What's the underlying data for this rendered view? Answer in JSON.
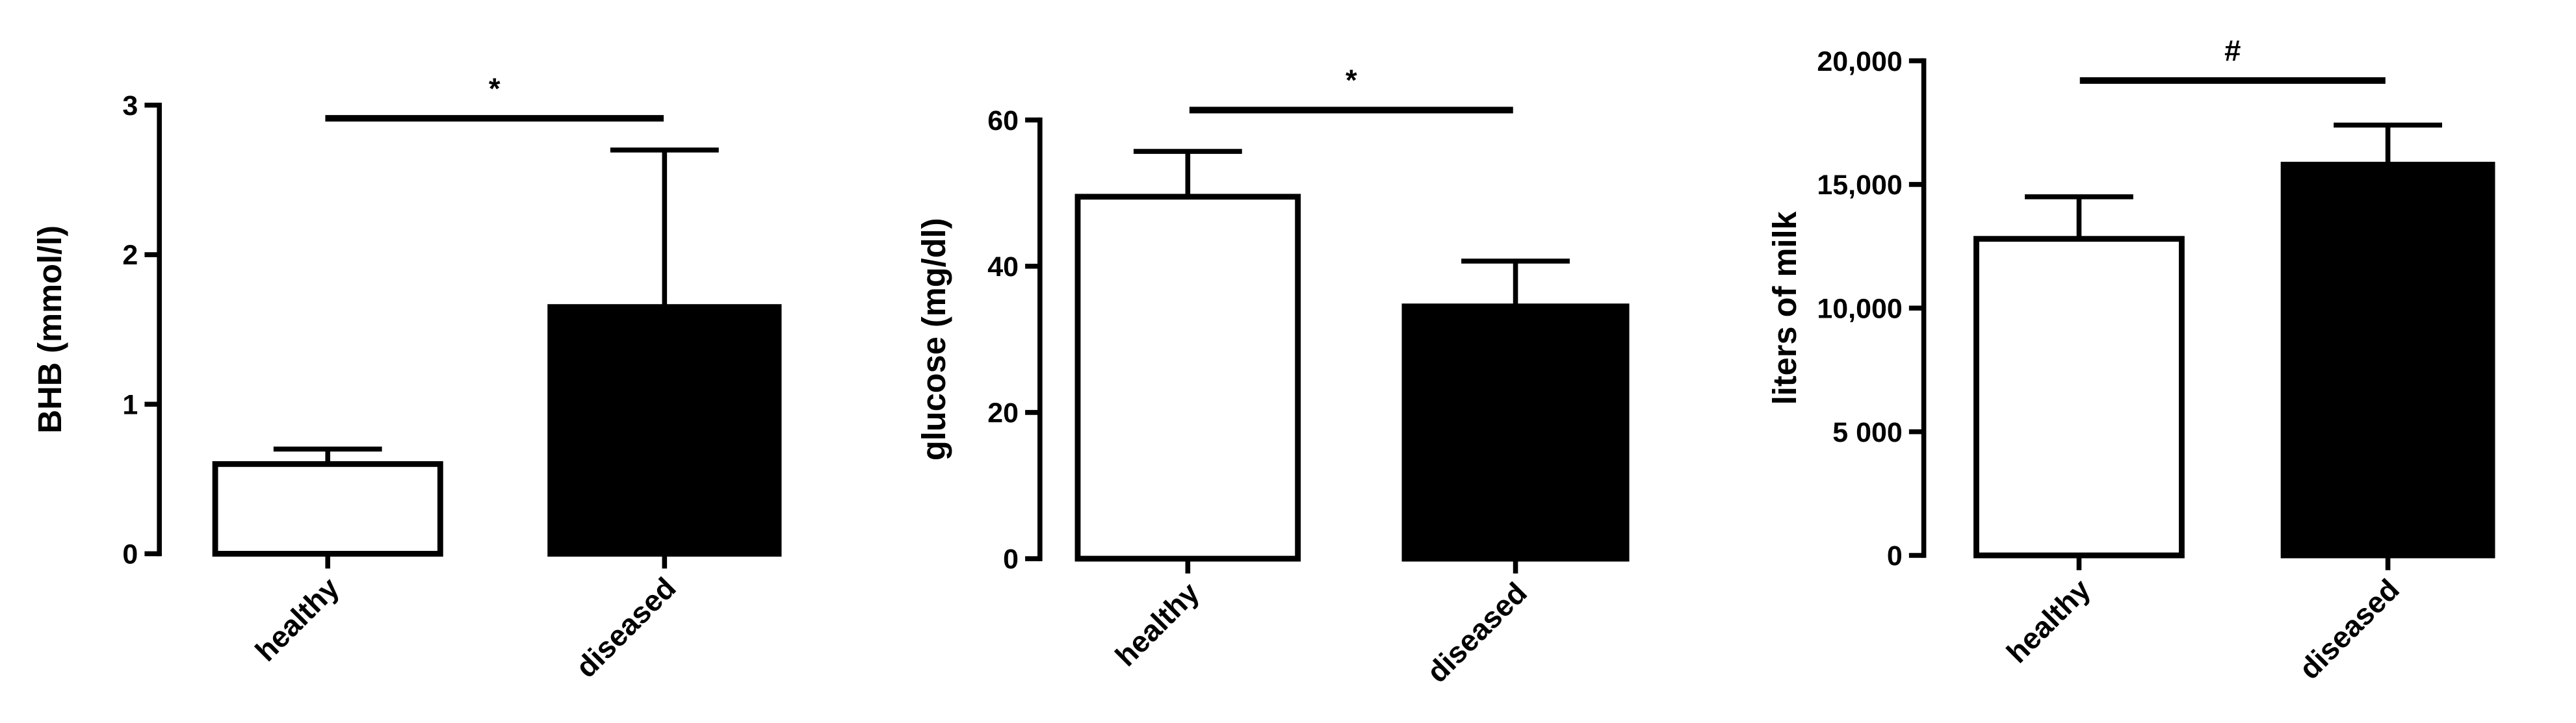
{
  "chart_data": [
    {
      "type": "bar",
      "y_label": "BHB (mmol/l)",
      "annotation": "*",
      "categories": [
        "healthy",
        "diseased"
      ],
      "values": [
        0.6,
        1.65
      ],
      "errors": [
        0.1,
        1.05
      ],
      "colors": [
        "#ffffff",
        "#000000"
      ],
      "ylim": [
        0,
        3
      ],
      "yticks": [
        0,
        1,
        2,
        3
      ]
    },
    {
      "type": "bar",
      "y_label": "glucose (mg/dl)",
      "annotation": "*",
      "categories": [
        "healthy",
        "diseased"
      ],
      "values": [
        49.5,
        34.5
      ],
      "errors": [
        6.2,
        6.2
      ],
      "colors": [
        "#ffffff",
        "#000000"
      ],
      "ylim": [
        0,
        60
      ],
      "yticks": [
        0,
        20,
        40,
        60
      ]
    },
    {
      "type": "bar",
      "y_label": "liters of milk",
      "annotation": "#",
      "categories": [
        "healthy",
        "diseased"
      ],
      "values": [
        12800,
        15800
      ],
      "errors": [
        1700,
        1600
      ],
      "colors": [
        "#ffffff",
        "#000000"
      ],
      "ylim": [
        0,
        20000
      ],
      "yticks": [
        0,
        {
          "value": 5000,
          "label": "5 000"
        },
        {
          "value": 10000,
          "label": "10,000"
        },
        {
          "value": 15000,
          "label": "15,000"
        },
        {
          "value": 20000,
          "label": "20,000"
        }
      ]
    }
  ]
}
